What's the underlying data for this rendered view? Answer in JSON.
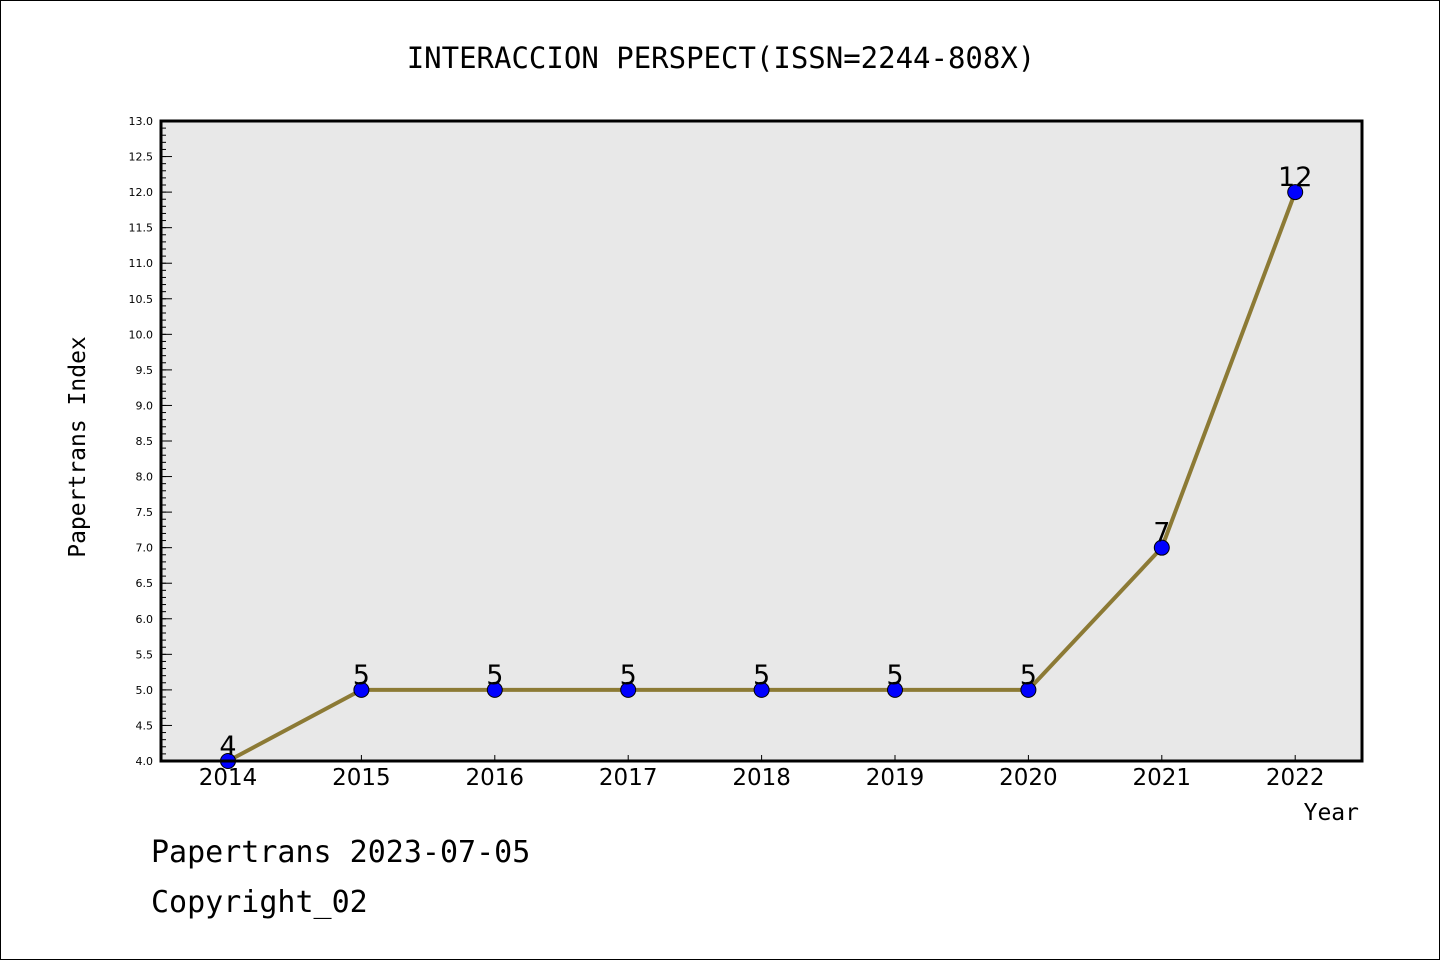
{
  "chart_data": {
    "type": "line",
    "title": "INTERACCION PERSPECT(ISSN=2244-808X)",
    "xlabel": "Year",
    "ylabel": "Papertrans Index",
    "categories": [
      "2014",
      "2015",
      "2016",
      "2017",
      "2018",
      "2019",
      "2020",
      "2021",
      "2022"
    ],
    "values": [
      4,
      5,
      5,
      5,
      5,
      5,
      5,
      7,
      12
    ],
    "data_labels": [
      "4",
      "5",
      "5",
      "5",
      "5",
      "5",
      "5",
      "7",
      "12"
    ],
    "ylim": [
      4.0,
      13.0
    ],
    "y_ticks": [
      "4.0",
      "4.5",
      "5.0",
      "5.5",
      "6.0",
      "6.5",
      "7.0",
      "7.5",
      "8.0",
      "8.5",
      "9.0",
      "9.5",
      "10.0",
      "10.5",
      "11.0",
      "11.5",
      "12.0",
      "12.5",
      "13.0"
    ],
    "grid": false,
    "colors": {
      "line": "#8c7a35",
      "marker": "#0000ff",
      "plot_background": "#e8e8e8"
    }
  },
  "footer": {
    "date_line": "Papertrans 2023-07-05",
    "copyright_line": "Copyright_02"
  }
}
